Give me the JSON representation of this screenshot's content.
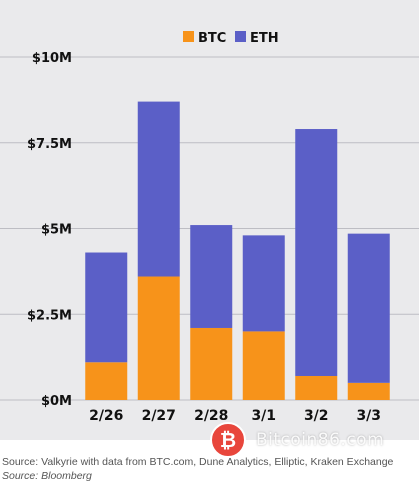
{
  "chart_data": {
    "type": "bar",
    "stacked": true,
    "categories": [
      "2/26",
      "2/27",
      "2/28",
      "3/1",
      "3/2",
      "3/3"
    ],
    "series": [
      {
        "name": "BTC",
        "color": "#f7931a",
        "values": [
          1.1,
          3.6,
          2.1,
          2.0,
          0.7,
          0.5
        ]
      },
      {
        "name": "ETH",
        "color": "#5b5fc7",
        "values": [
          3.2,
          5.1,
          3.0,
          2.8,
          7.2,
          4.35
        ]
      }
    ],
    "yticks": [
      {
        "value": 0,
        "label": "$0M"
      },
      {
        "value": 2.5,
        "label": "$2.5M"
      },
      {
        "value": 5,
        "label": "$5M"
      },
      {
        "value": 7.5,
        "label": "$7.5M"
      },
      {
        "value": 10,
        "label": "$10M"
      }
    ],
    "ylim": [
      0,
      10
    ],
    "grid": true,
    "legend": "top-center",
    "title": "",
    "xlabel": "",
    "ylabel": ""
  },
  "source": {
    "main": "Source: Valkyrie with data from BTC.com, Dune Analytics, Elliptic, Kraken Exchange",
    "italic": "Source: Bloomberg"
  },
  "watermark": {
    "text": "Bitcoin86.com",
    "logo_symbol": "₿",
    "logo_color": "#e8463c"
  }
}
